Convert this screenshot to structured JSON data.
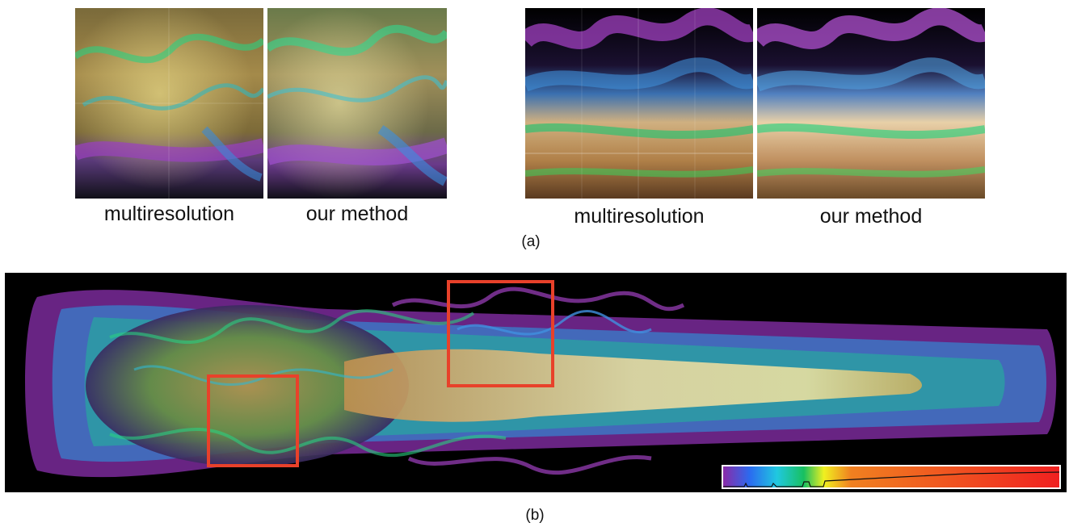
{
  "figure_a": {
    "label": "(a)",
    "left_pair": {
      "left_caption": "multiresolution",
      "right_caption": "our method"
    },
    "right_pair": {
      "left_caption": "multiresolution",
      "right_caption": "our method"
    }
  },
  "figure_b": {
    "label": "(b)",
    "zoom_boxes_color": "#e8412a",
    "colorbar": {
      "gradient_colors": [
        "#8a2aa8",
        "#2a6cf0",
        "#20c8e0",
        "#18c060",
        "#f0f020",
        "#f08020",
        "#f05020",
        "#f02020"
      ]
    }
  }
}
